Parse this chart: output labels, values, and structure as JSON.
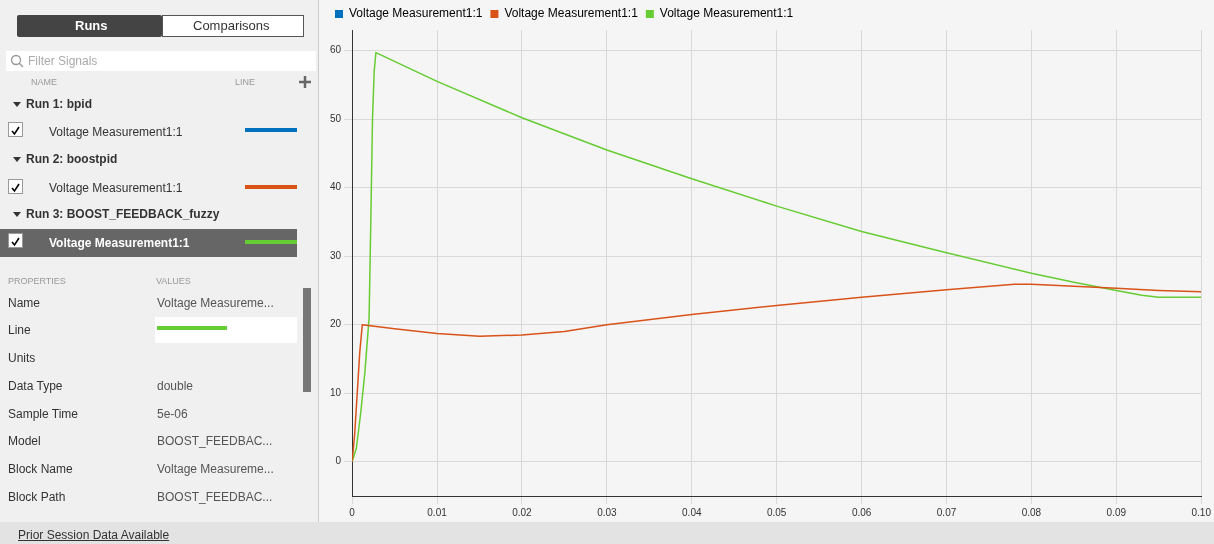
{
  "chart_data": {
    "type": "line",
    "legend": "top left",
    "grid": true,
    "marker": "none",
    "line_style": "solid",
    "xlim": [
      0,
      0.1
    ],
    "ylim": [
      -5,
      63
    ],
    "xticks": [
      0,
      0.01,
      0.02,
      0.03,
      0.04,
      0.05,
      0.06,
      0.07,
      0.08,
      0.09,
      {
        "value": 0.1,
        "label": "0.10"
      }
    ],
    "yticks": [
      0,
      10,
      20,
      30,
      40,
      50,
      60
    ],
    "series": [
      {
        "name": "Voltage Measurement1:1",
        "color": "#0072bd"
      },
      {
        "name": "Voltage Measurement1:1",
        "color": "#d95319",
        "x": [
          0,
          0.0003,
          0.0006,
          0.0009,
          0.0012,
          0.005,
          0.01,
          0.015,
          0.02,
          0.025,
          0.03,
          0.04,
          0.05,
          0.06,
          0.07,
          0.078,
          0.08,
          0.085,
          0.09,
          0.095,
          0.1
        ],
        "values": [
          0,
          4,
          10,
          16,
          20,
          19.4,
          18.7,
          18.3,
          18.5,
          19,
          20,
          21.5,
          22.8,
          24,
          25.1,
          25.9,
          25.9,
          25.6,
          25.3,
          25,
          24.8
        ]
      },
      {
        "name": "Voltage Measurement1:1",
        "color": "#66cc33",
        "x": [
          0,
          0.0005,
          0.001,
          0.0015,
          0.002,
          0.0022,
          0.0024,
          0.0026,
          0.0028,
          0.01,
          0.02,
          0.03,
          0.04,
          0.05,
          0.06,
          0.07,
          0.08,
          0.085,
          0.09,
          0.093,
          0.095,
          0.1
        ],
        "values": [
          0,
          2,
          7,
          13,
          21,
          35,
          50,
          57,
          59.7,
          55.5,
          50.2,
          45.5,
          41.3,
          37.3,
          33.6,
          30.5,
          27.5,
          26.2,
          25,
          24.3,
          24,
          24
        ]
      }
    ],
    "annotations": [
      "Runs",
      "Comparisons",
      "Filter Signals",
      "NAME",
      "LINE",
      "Run 1: bpid",
      "Voltage Measurement1:1",
      "Run 2: boostpid",
      "Voltage Measurement1:1",
      "Run 3: BOOST_FEEDBACK_fuzzy",
      "Voltage Measurement1:1",
      "PROPERTIES",
      "VALUES",
      "Name",
      "Voltage Measureme...",
      "Line",
      "Units",
      "Data Type",
      "double",
      "Sample Time",
      "5e-06",
      "Model",
      "BOOST_FEEDBAC...",
      "Block Name",
      "Voltage Measureme...",
      "Block Path",
      "BOOST_FEEDBAC...",
      "Prior Session Data Available"
    ]
  }
}
